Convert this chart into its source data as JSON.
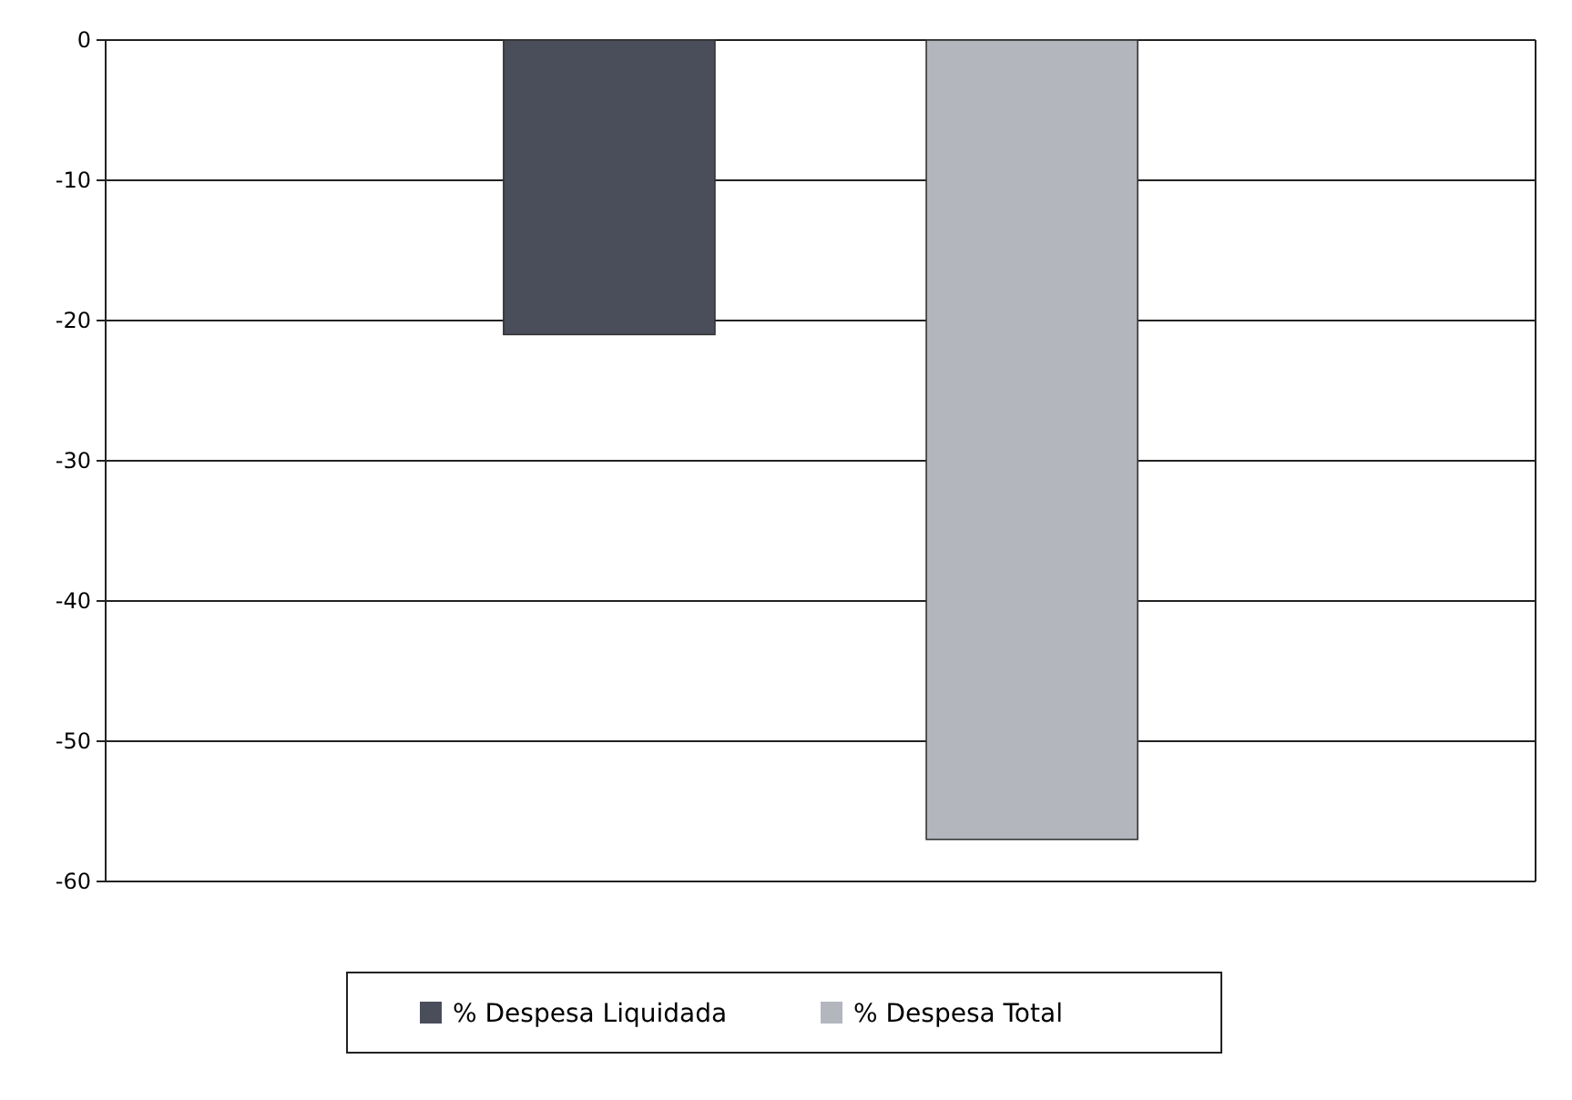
{
  "chart_data": {
    "type": "bar",
    "categories": [
      null
    ],
    "series": [
      {
        "name": "% Despesa Liquidada",
        "color": "#4a4d5a",
        "values": [
          -21
        ]
      },
      {
        "name": "% Despesa Total",
        "color": "#b3b6bd",
        "values": [
          -57
        ]
      }
    ],
    "ylim": [
      -60,
      0
    ],
    "yticks": [
      0,
      -10,
      -20,
      -30,
      -40,
      -50,
      -60
    ],
    "grid": "y",
    "legend": "bottom"
  }
}
